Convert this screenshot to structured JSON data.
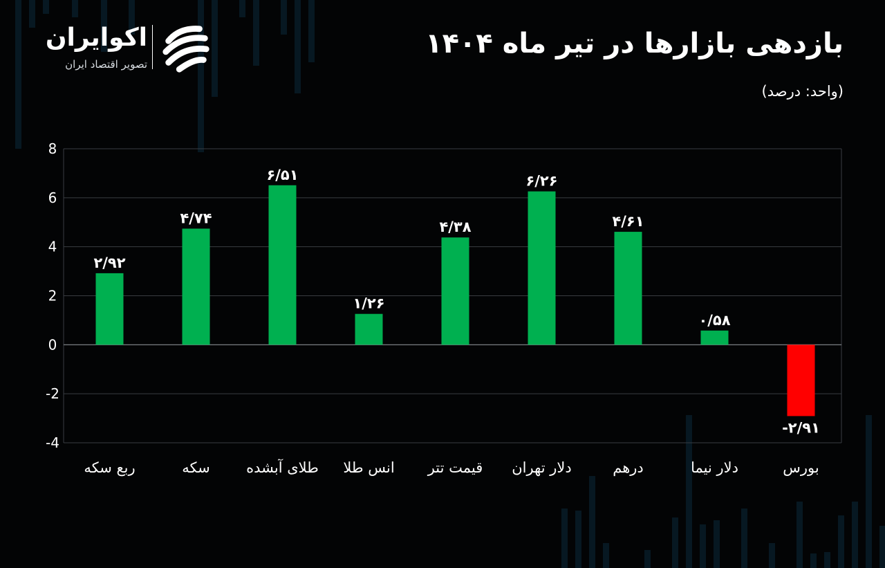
{
  "brand": {
    "name": "اکوایران",
    "tagline": "تصویر اقتصاد ایران"
  },
  "header": {
    "title": "بازدهی بازارها در تیر ماه ۱۴۰۴",
    "unit": "(واحد: درصد)"
  },
  "colors": {
    "background": "#030405",
    "positive": "#00b050",
    "negative": "#ff0000",
    "grid": "#3a3d42",
    "text": "#ffffff"
  },
  "chart_data": {
    "type": "bar",
    "title": "بازدهی بازارها در تیر ماه ۱۴۰۴",
    "xlabel": "",
    "ylabel": "",
    "ylim": [
      -4,
      8
    ],
    "yticks": [
      8,
      6,
      4,
      2,
      0,
      -2,
      -4
    ],
    "ytick_labels": [
      "8",
      "6",
      "4",
      "2",
      "0",
      "-2",
      "-4"
    ],
    "grid": true,
    "legend": "none",
    "categories": [
      "ربع سکه",
      "سکه",
      "طلای آبشده",
      "انس طلا",
      "قیمت تتر",
      "دلار تهران",
      "درهم",
      "دلار نیما",
      "بورس"
    ],
    "values": [
      2.92,
      4.74,
      6.51,
      1.26,
      4.38,
      6.26,
      4.61,
      0.58,
      -2.91
    ],
    "data_labels": [
      "۲/۹۲",
      "۴/۷۴",
      "۶/۵۱",
      "۱/۲۶",
      "۴/۳۸",
      "۶/۲۶",
      "۴/۶۱",
      "۰/۵۸",
      "-۲/۹۱"
    ]
  }
}
